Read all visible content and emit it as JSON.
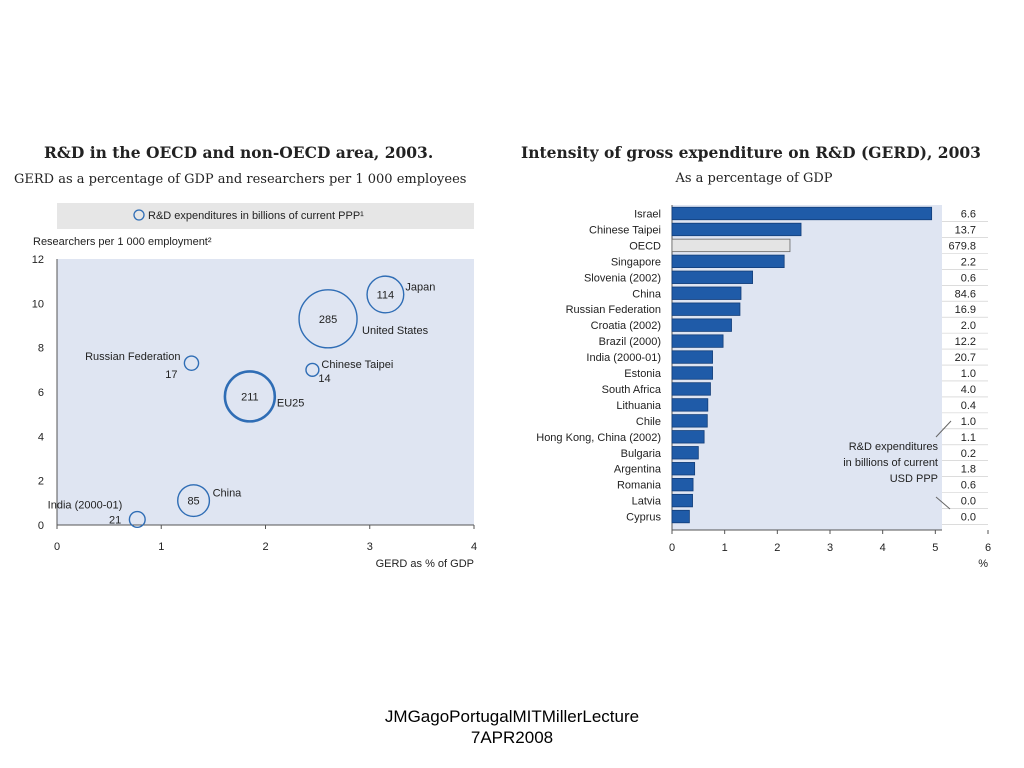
{
  "footer": {
    "line1": "JMGagoPortugalMITMillerLecture",
    "line2": "7APR2008"
  },
  "chart_data": [
    {
      "type": "scatter",
      "title": "R&D in the OECD and non-OECD area, 2003.",
      "subtitle": "GERD as a percentage of GDP and researchers per 1 000 employees",
      "legend_text": "R&D expenditures in billions of current PPP¹",
      "ylabel": "Researchers per 1 000 employment²",
      "xlabel": "GERD as % of GDP",
      "xlim": [
        0,
        4
      ],
      "ylim": [
        0,
        12
      ],
      "xticks": [
        0,
        1,
        2,
        3,
        4
      ],
      "yticks": [
        0,
        2,
        4,
        6,
        8,
        10,
        12
      ],
      "grid": false,
      "bubble_color": "#2f6db5",
      "background": "#dfe5f2",
      "points": [
        {
          "name": "Japan",
          "x": 3.15,
          "y": 10.4,
          "size": 114,
          "size_label": "114"
        },
        {
          "name": "United States",
          "x": 2.6,
          "y": 9.3,
          "size": 285,
          "size_label": "285"
        },
        {
          "name": "Russian Federation",
          "x": 1.29,
          "y": 7.3,
          "size": 17,
          "size_label": "17"
        },
        {
          "name": "Chinese Taipei",
          "x": 2.45,
          "y": 7.0,
          "size": 14,
          "size_label": "14"
        },
        {
          "name": "EU25",
          "x": 1.85,
          "y": 5.8,
          "size": 211,
          "size_label": "211"
        },
        {
          "name": "China",
          "x": 1.31,
          "y": 1.1,
          "size": 85,
          "size_label": "85"
        },
        {
          "name": "India (2000-01)",
          "x": 0.77,
          "y": 0.25,
          "size": 21,
          "size_label": "21"
        }
      ]
    },
    {
      "type": "bar",
      "orientation": "horizontal",
      "title": "Intensity of gross expenditure on R&D (GERD), 2003",
      "subtitle": "As a percentage of GDP",
      "xlabel": "%",
      "xlim": [
        0,
        6
      ],
      "xticks": [
        0,
        1,
        2,
        3,
        4,
        5,
        6
      ],
      "bar_color": "#1f5ba8",
      "highlight_color": "#e4e4e4",
      "background": "#dfe5f2",
      "annotation": [
        "R&D expenditures",
        "in billions of current",
        "USD PPP"
      ],
      "categories": [
        "Israel",
        "Chinese Taipei",
        "OECD",
        "Singapore",
        "Slovenia (2002)",
        "China",
        "Russian Federation",
        "Croatia (2002)",
        "Brazil (2000)",
        "India (2000-01)",
        "Estonia",
        "South Africa",
        "Lithuania",
        "Chile",
        "Hong Kong, China (2002)",
        "Bulgaria",
        "Argentina",
        "Romania",
        "Latvia",
        "Cyprus"
      ],
      "values": [
        4.93,
        2.45,
        2.24,
        2.13,
        1.53,
        1.31,
        1.29,
        1.13,
        0.97,
        0.77,
        0.77,
        0.73,
        0.68,
        0.67,
        0.61,
        0.5,
        0.43,
        0.4,
        0.39,
        0.33
      ],
      "highlight": [
        false,
        false,
        true,
        false,
        false,
        false,
        false,
        false,
        false,
        false,
        false,
        false,
        false,
        false,
        false,
        false,
        false,
        false,
        false,
        false
      ],
      "expenditure_labels": [
        "6.6",
        "13.7",
        "679.8",
        "2.2",
        "0.6",
        "84.6",
        "16.9",
        "2.0",
        "12.2",
        "20.7",
        "1.0",
        "4.0",
        "0.4",
        "1.0",
        "1.1",
        "0.2",
        "1.8",
        "0.6",
        "0.0",
        "0.0"
      ]
    }
  ]
}
